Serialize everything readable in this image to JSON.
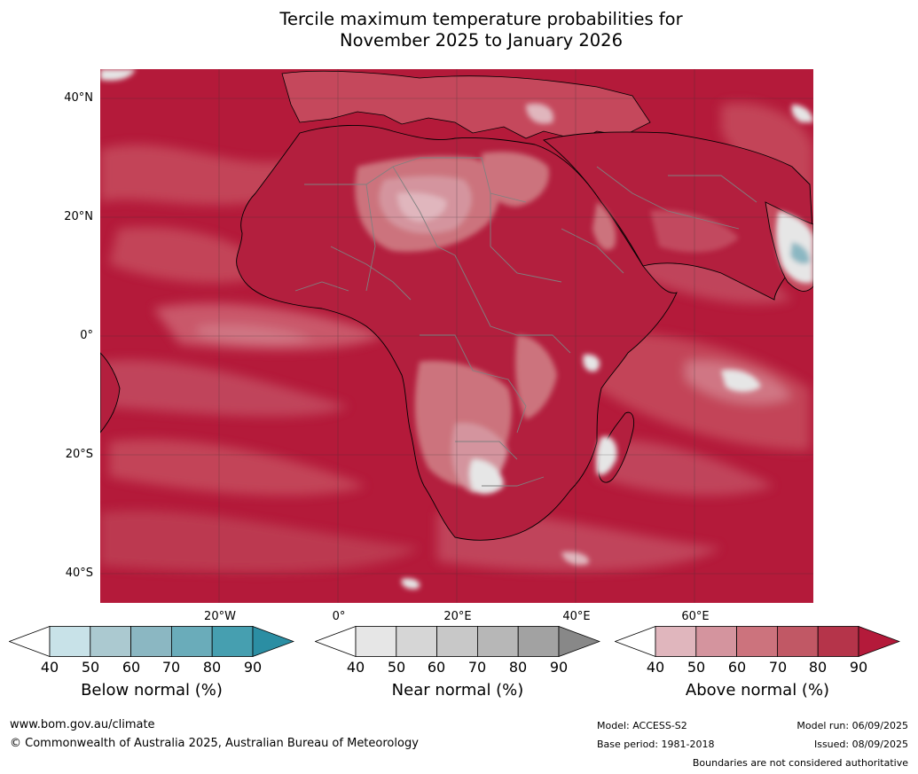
{
  "title": {
    "line1": "Tercile maximum temperature probabilities for",
    "line2": "November 2025 to January 2026"
  },
  "map": {
    "lat_labels": [
      "40°N",
      "20°N",
      "0°",
      "20°S",
      "40°S"
    ],
    "lon_labels": [
      "20°W",
      "0°",
      "20°E",
      "40°E",
      "60°E"
    ],
    "ocean_color": "#b41a3a",
    "land_outline_color": "#000000",
    "border_color": "#808080",
    "grid_color": "#333333"
  },
  "colorbars": [
    {
      "label": "Below normal (%)",
      "ticks": [
        "40",
        "50",
        "60",
        "70",
        "80",
        "90"
      ],
      "colors": [
        "#ffffff",
        "#c8e2e8",
        "#abc9d0",
        "#8bb7c2",
        "#6aacba",
        "#469fb0",
        "#2b8ea3"
      ]
    },
    {
      "label": "Near normal (%)",
      "ticks": [
        "40",
        "50",
        "60",
        "70",
        "80",
        "90"
      ],
      "colors": [
        "#ffffff",
        "#e6e6e6",
        "#d6d6d6",
        "#c8c8c8",
        "#b7b7b7",
        "#a2a2a2",
        "#888888"
      ]
    },
    {
      "label": "Above normal (%)",
      "ticks": [
        "40",
        "50",
        "60",
        "70",
        "80",
        "90"
      ],
      "colors": [
        "#ffffff",
        "#e0b6bd",
        "#d4949e",
        "#cc737d",
        "#c15865",
        "#b5344a",
        "#b41a3a"
      ]
    }
  ],
  "footer": {
    "website": "www.bom.gov.au/climate",
    "copyright": "© Commonwealth of Australia 2025, Australian Bureau of Meteorology",
    "model": "Model: ACCESS-S2",
    "base_period": "Base period: 1981-2018",
    "model_run": "Model run: 06/09/2025",
    "issued": "Issued: 08/09/2025",
    "disclaimer": "Boundaries are not considered authoritative"
  }
}
